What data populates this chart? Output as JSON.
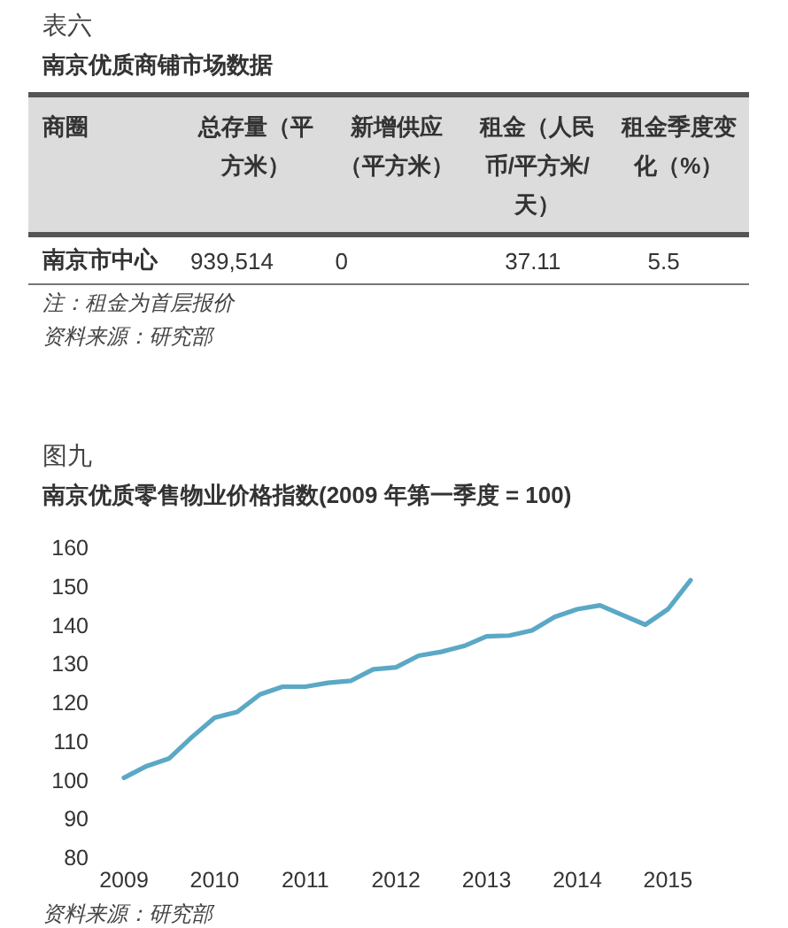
{
  "chart_data": [
    {
      "type": "other",
      "subtitle": "表六",
      "title": "南京优质商铺市场数据",
      "categories": [
        "商圈",
        "总存量（平方米）",
        "新增供应（平方米）",
        "租金（人民币/平方米/天）",
        "租金季度变化（%）"
      ],
      "y_categories": [
        "南京市中心"
      ],
      "cell_labels": [
        [
          "939,514",
          "0",
          "37.11",
          "5.5"
        ]
      ],
      "annotations": [
        "注：租金为首层报价",
        "资料来源：研究部"
      ]
    },
    {
      "type": "line",
      "subtitle": "图九",
      "title": "南京优质零售物业价格指数(2009 年第一季度 = 100)",
      "categories": [
        "2009",
        null,
        null,
        null,
        "2010",
        null,
        null,
        null,
        "2011",
        null,
        null,
        null,
        "2012",
        null,
        null,
        null,
        "2013",
        null,
        null,
        null,
        "2014",
        null,
        null,
        null,
        "2015",
        null
      ],
      "series": [
        {
          "color": "#5ba8c6",
          "values": [
            100.5,
            103.5,
            105.5,
            111,
            116,
            117.5,
            122,
            124,
            124,
            125,
            125.5,
            128.5,
            129,
            132,
            133,
            134.5,
            137,
            137.2,
            138.5,
            142,
            144,
            145,
            142.5,
            140,
            144,
            151.5
          ]
        }
      ],
      "ylim": [
        80,
        160
      ],
      "yticks": [
        80,
        90,
        100,
        110,
        120,
        130,
        140,
        150,
        160
      ],
      "grid": false,
      "annotations": [
        "资料来源：研究部"
      ]
    }
  ]
}
